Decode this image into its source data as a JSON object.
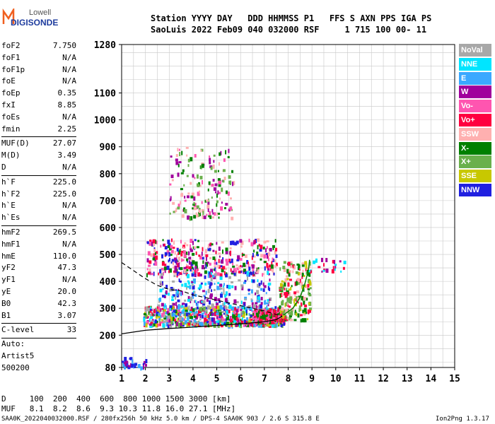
{
  "logo": {
    "line1": "Lowell",
    "line2": "DIGISONDE"
  },
  "header": {
    "row1": "Station YYYY DAY   DDD HHMMSS P1   FFS S AXN PPS IGA PS",
    "row2": "SaoLuis 2022 Feb09 040 032000 RSF     1 715 100 00- 11"
  },
  "params": [
    {
      "k": "foF2",
      "v": "7.750"
    },
    {
      "k": "foF1",
      "v": "N/A"
    },
    {
      "k": "foF1p",
      "v": "N/A"
    },
    {
      "k": "foE",
      "v": "N/A"
    },
    {
      "k": "foEp",
      "v": "0.35"
    },
    {
      "k": "fxI",
      "v": "8.85"
    },
    {
      "k": "foEs",
      "v": "N/A"
    },
    {
      "k": "fmin",
      "v": "2.25"
    },
    {
      "k": "MUF(D)",
      "v": "27.07"
    },
    {
      "k": "M(D)",
      "v": "3.49"
    },
    {
      "k": "D",
      "v": "N/A"
    },
    {
      "k": "h`F",
      "v": "225.0"
    },
    {
      "k": "h`F2",
      "v": "225.0"
    },
    {
      "k": "h`E",
      "v": "N/A"
    },
    {
      "k": "h`Es",
      "v": "N/A"
    },
    {
      "k": "hmF2",
      "v": "269.5"
    },
    {
      "k": "hmF1",
      "v": "N/A"
    },
    {
      "k": "hmE",
      "v": "110.0"
    },
    {
      "k": "yF2",
      "v": "47.3"
    },
    {
      "k": "yF1",
      "v": "N/A"
    },
    {
      "k": "yE",
      "v": "20.0"
    },
    {
      "k": "B0",
      "v": "42.3"
    },
    {
      "k": "B1",
      "v": "3.07"
    },
    {
      "k": "C-level",
      "v": "33"
    }
  ],
  "auto": {
    "line1": "Auto:",
    "line2": "Artist5",
    "line3": "500200"
  },
  "legend": [
    {
      "label": "NoVal",
      "color": "#a8a8a8"
    },
    {
      "label": "NNE",
      "color": "#00e5ff"
    },
    {
      "label": "E",
      "color": "#3aa8ff"
    },
    {
      "label": "W",
      "color": "#a0009c"
    },
    {
      "label": "Vo-",
      "color": "#ff55b0"
    },
    {
      "label": "Vo+",
      "color": "#ff0040"
    },
    {
      "label": "SSW",
      "color": "#ffb0b0"
    },
    {
      "label": "X-",
      "color": "#008000"
    },
    {
      "label": "X+",
      "color": "#6ab04c"
    },
    {
      "label": "SSE",
      "color": "#c8c800"
    },
    {
      "label": "NNW",
      "color": "#2020e0"
    }
  ],
  "muf_table": {
    "row1": "D     100  200  400  600  800 1000 1500 3000 [km]",
    "row2": "MUF   8.1  8.2  8.6  9.3 10.3 11.8 16.0 27.1 [MHz]"
  },
  "footer": {
    "left": "SAA0K_2022040032000.RSF / 280fx256h 50 kHz 5.0 km / DPS-4 SAA0K 903 / 2.6 S 315.8 E",
    "right": "Ion2Png 1.3.17"
  },
  "chart_data": {
    "type": "scatter",
    "xlim": [
      1,
      15
    ],
    "ylim": [
      80,
      1280
    ],
    "x_ticks": [
      "1",
      "2",
      "3",
      "4",
      "5",
      "6",
      "7",
      "8",
      "9",
      "10",
      "11",
      "12",
      "13",
      "14",
      "15"
    ],
    "y_ticks": [
      {
        "value": 80,
        "label": "80"
      },
      {
        "value": 200,
        "label": "200"
      },
      {
        "value": 300,
        "label": "300"
      },
      {
        "value": 400,
        "label": "400"
      },
      {
        "value": 500,
        "label": "500"
      },
      {
        "value": 600,
        "label": "600"
      },
      {
        "value": 700,
        "label": "700"
      },
      {
        "value": 800,
        "label": "800"
      },
      {
        "value": 900,
        "label": "900"
      },
      {
        "value": 1000,
        "label": "1000"
      },
      {
        "value": 1100,
        "label": "1100"
      },
      {
        "value": 1280,
        "label": "1280"
      }
    ],
    "grid": true,
    "virtual_height_curve": [
      [
        1,
        205
      ],
      [
        2,
        218
      ],
      [
        3,
        225
      ],
      [
        4,
        230
      ],
      [
        5,
        236
      ],
      [
        6,
        242
      ],
      [
        7,
        250
      ],
      [
        7.5,
        258
      ],
      [
        7.75,
        270
      ]
    ],
    "true_height_curve_dashed": [
      [
        1,
        470
      ],
      [
        1.5,
        440
      ],
      [
        2,
        410
      ],
      [
        2.5,
        385
      ],
      [
        3,
        370
      ],
      [
        3.5,
        365
      ],
      [
        4,
        350
      ],
      [
        5,
        330
      ],
      [
        6,
        310
      ],
      [
        7,
        290
      ],
      [
        7.75,
        270
      ]
    ],
    "x_trace_curve": [
      [
        7.8,
        275
      ],
      [
        8.2,
        300
      ],
      [
        8.5,
        340
      ],
      [
        8.7,
        390
      ],
      [
        8.85,
        440
      ],
      [
        8.9,
        480
      ]
    ],
    "clusters": [
      {
        "x": [
          1.9,
          7.8
        ],
        "y": [
          240,
          310
        ],
        "n": 750,
        "colors": [
          "#2020e0",
          "#ff0040",
          "#ff55b0",
          "#a0009c",
          "#00e5ff",
          "#3aa8ff",
          "#008000",
          "#6ab04c",
          "#c8c800",
          "#a8a8a8"
        ]
      },
      {
        "x": [
          6.5,
          7.8
        ],
        "y": [
          255,
          300
        ],
        "n": 220,
        "colors": [
          "#ff0040",
          "#ff55b0",
          "#008000"
        ]
      },
      {
        "x": [
          7.6,
          8.9
        ],
        "y": [
          260,
          480
        ],
        "n": 200,
        "colors": [
          "#6ab04c",
          "#008000",
          "#ffb0b0",
          "#c8c800",
          "#ff0040"
        ]
      },
      {
        "x": [
          2,
          7.5
        ],
        "y": [
          430,
          560
        ],
        "n": 380,
        "colors": [
          "#ff55b0",
          "#a0009c",
          "#ff0040",
          "#008000",
          "#2020e0",
          "#ffb0b0"
        ]
      },
      {
        "x": [
          2.5,
          7.2
        ],
        "y": [
          310,
          440
        ],
        "n": 260,
        "colors": [
          "#2020e0",
          "#3aa8ff",
          "#00e5ff",
          "#a8a8a8",
          "#a0009c"
        ]
      },
      {
        "x": [
          3,
          5.7
        ],
        "y": [
          640,
          900
        ],
        "n": 170,
        "colors": [
          "#a0009c",
          "#ff55b0",
          "#008000",
          "#6ab04c",
          "#ffb0b0"
        ]
      },
      {
        "x": [
          1,
          2
        ],
        "y": [
          82,
          120
        ],
        "n": 40,
        "colors": [
          "#2020e0",
          "#3aa8ff",
          "#a0009c"
        ]
      },
      {
        "x": [
          8.8,
          10.5
        ],
        "y": [
          440,
          490
        ],
        "n": 25,
        "colors": [
          "#a0009c",
          "#00e5ff",
          "#ff0040"
        ]
      }
    ]
  }
}
